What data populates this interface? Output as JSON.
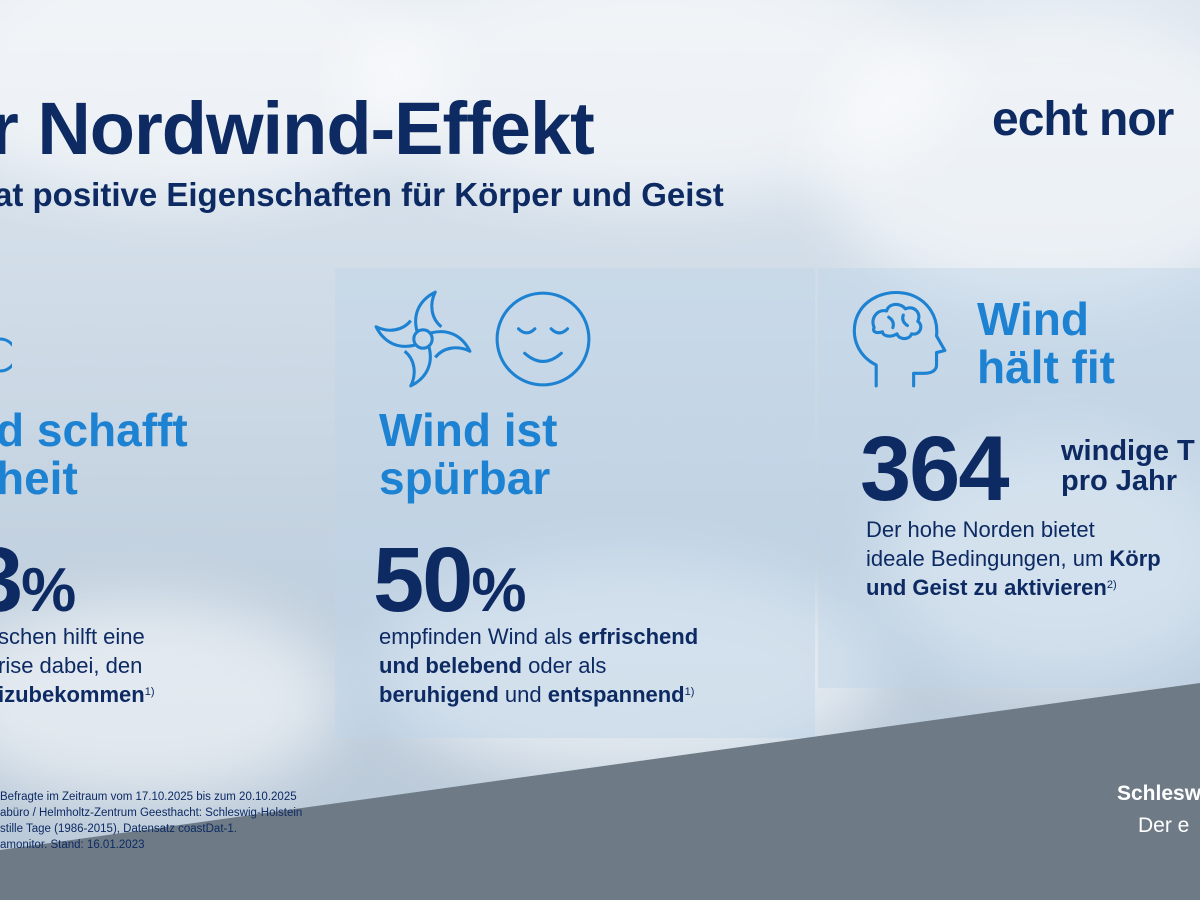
{
  "header": {
    "title": "r Nordwind-Effekt",
    "subtitle": "at positive Eigenschaften für Körper und Geist",
    "brand": "echt nor"
  },
  "columns": [
    {
      "heading_line1": "d schafft",
      "heading_line2": "heit",
      "stat_value": "3",
      "stat_unit": "%",
      "body_line1": "schen hilft eine",
      "body_line2": "rise dabei, den",
      "body_line3_bold": "izubekommen",
      "footnote_ref": "1)",
      "icon": "partial-circle-icon"
    },
    {
      "heading_line1": "Wind ist",
      "heading_line2": "spürbar",
      "stat_value": "50",
      "stat_unit": "%",
      "body_line1_text": "empfinden Wind als ",
      "body_line1_bold": "erfrischend",
      "body_line2_bold1": "und belebend",
      "body_line2_text": " oder als",
      "body_line3_bold1": "beruhigend",
      "body_line3_text": " und ",
      "body_line3_bold2": "entspannend",
      "footnote_ref": "1)",
      "icons": [
        "pinwheel-icon",
        "relaxed-face-icon"
      ]
    },
    {
      "heading_line1": "Wind",
      "heading_line2": "hält fit",
      "stat_value": "364",
      "stat_label_line1": "windige T",
      "stat_label_line2": "pro Jahr",
      "body_line1": "Der hohe Norden bietet",
      "body_line2_text": "ideale Bedingungen, um ",
      "body_line2_bold": "Körp",
      "body_line3_bold": "und Geist zu aktivieren",
      "footnote_ref": "2)",
      "icon": "head-brain-icon"
    }
  ],
  "footnotes": [
    "Befragte im Zeitraum vom 17.10.2025 bis zum 20.10.2025",
    "abüro / Helmholtz-Zentrum Geesthacht: Schleswig-Holstein",
    "stille Tage (1986-2015), Datensatz coastDat-1.",
    "amonitor. Stand: 16.01.2023"
  ],
  "sh_logo": {
    "name": "Schlesw",
    "tagline": "Der e"
  },
  "colors": {
    "navy": "#0d2a63",
    "accent_blue": "#1d82d2",
    "slate_band": "#6d7a86"
  }
}
